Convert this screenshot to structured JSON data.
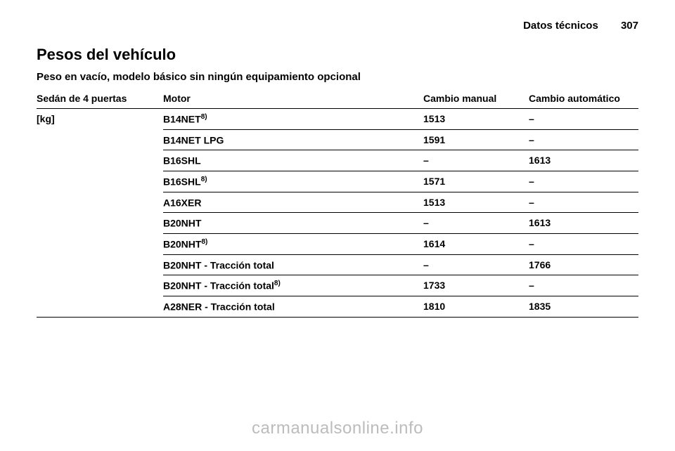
{
  "header": {
    "section": "Datos técnicos",
    "page_number": "307"
  },
  "title": "Pesos del vehículo",
  "subheading": "Peso en vacío, modelo básico sin ningún equipamiento opcional",
  "table": {
    "columns": {
      "config": "Sedán de 4 puertas",
      "motor": "Motor",
      "manual": "Cambio manual",
      "auto": "Cambio automático"
    },
    "config_unit": "[kg]",
    "rows": [
      {
        "motor": "B14NET",
        "sup": "8)",
        "manual": "1513",
        "auto": "–"
      },
      {
        "motor": "B14NET LPG",
        "sup": "",
        "manual": "1591",
        "auto": "–"
      },
      {
        "motor": "B16SHL",
        "sup": "",
        "manual": "–",
        "auto": "1613"
      },
      {
        "motor": "B16SHL",
        "sup": "8)",
        "manual": "1571",
        "auto": "–"
      },
      {
        "motor": "A16XER",
        "sup": "",
        "manual": "1513",
        "auto": "–"
      },
      {
        "motor": "B20NHT",
        "sup": "",
        "manual": "–",
        "auto": "1613"
      },
      {
        "motor": "B20NHT",
        "sup": "8)",
        "manual": "1614",
        "auto": "–"
      },
      {
        "motor": "B20NHT - Tracción total",
        "sup": "",
        "manual": "–",
        "auto": "1766"
      },
      {
        "motor": "B20NHT - Tracción total",
        "sup": "8)",
        "manual": "1733",
        "auto": "–"
      },
      {
        "motor": "A28NER - Tracción total",
        "sup": "",
        "manual": "1810",
        "auto": "1835"
      }
    ]
  },
  "watermark": "carmanualsonline.info"
}
